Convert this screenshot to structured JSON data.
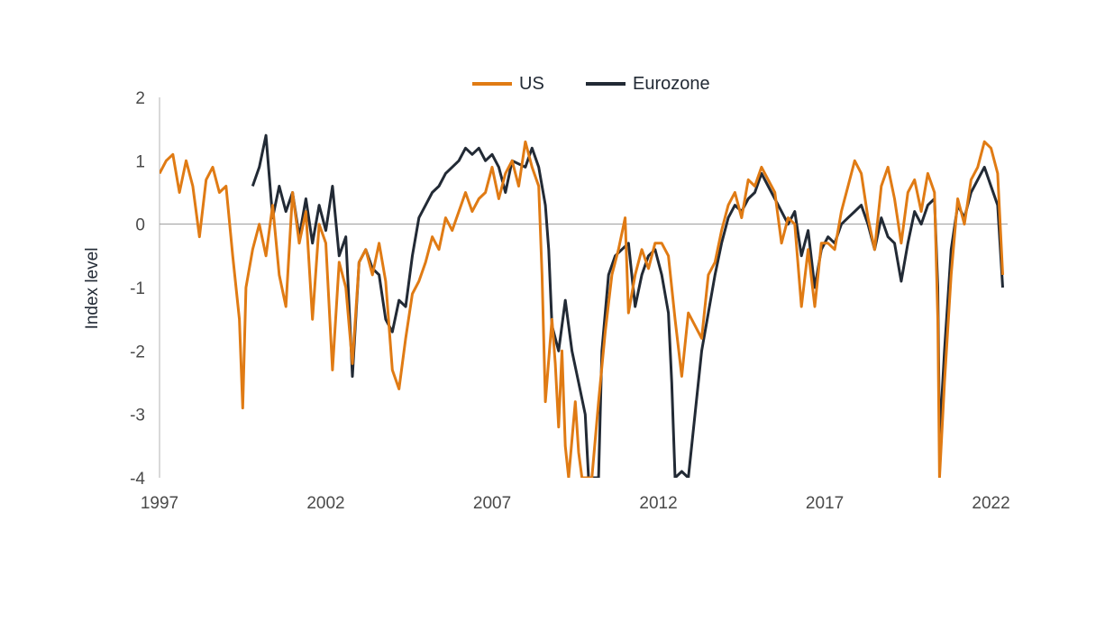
{
  "colors": {
    "us": "#e07b14",
    "eurozone": "#222a35",
    "axis": "#9a9a9a"
  },
  "legend": {
    "us_label": "US",
    "eurozone_label": "Eurozone"
  },
  "chart_data": {
    "type": "line",
    "title": "",
    "xlabel": "",
    "ylabel": "Index level",
    "xlim": [
      1997,
      2022.5
    ],
    "ylim": [
      -4,
      2
    ],
    "x_ticks": [
      1997,
      2002,
      2007,
      2012,
      2017,
      2022
    ],
    "y_ticks": [
      2,
      1,
      0,
      -1,
      -2,
      -3,
      -4
    ],
    "legend_position": "top-center",
    "grid": false,
    "series": [
      {
        "name": "US",
        "color": "#e07b14",
        "points": [
          [
            1997.0,
            0.8
          ],
          [
            1997.2,
            1.0
          ],
          [
            1997.4,
            1.1
          ],
          [
            1997.6,
            0.5
          ],
          [
            1997.8,
            1.0
          ],
          [
            1998.0,
            0.6
          ],
          [
            1998.2,
            -0.2
          ],
          [
            1998.4,
            0.7
          ],
          [
            1998.6,
            0.9
          ],
          [
            1998.8,
            0.5
          ],
          [
            1999.0,
            0.6
          ],
          [
            1999.2,
            -0.5
          ],
          [
            1999.4,
            -1.5
          ],
          [
            1999.5,
            -2.9
          ],
          [
            1999.6,
            -1.0
          ],
          [
            1999.8,
            -0.4
          ],
          [
            2000.0,
            0.0
          ],
          [
            2000.2,
            -0.5
          ],
          [
            2000.4,
            0.3
          ],
          [
            2000.6,
            -0.8
          ],
          [
            2000.8,
            -1.3
          ],
          [
            2001.0,
            0.5
          ],
          [
            2001.2,
            -0.3
          ],
          [
            2001.4,
            0.2
          ],
          [
            2001.6,
            -1.5
          ],
          [
            2001.8,
            0.0
          ],
          [
            2002.0,
            -0.3
          ],
          [
            2002.2,
            -2.3
          ],
          [
            2002.4,
            -0.6
          ],
          [
            2002.6,
            -1.0
          ],
          [
            2002.8,
            -2.2
          ],
          [
            2003.0,
            -0.6
          ],
          [
            2003.2,
            -0.4
          ],
          [
            2003.4,
            -0.8
          ],
          [
            2003.6,
            -0.3
          ],
          [
            2003.8,
            -0.9
          ],
          [
            2004.0,
            -2.3
          ],
          [
            2004.2,
            -2.6
          ],
          [
            2004.4,
            -1.8
          ],
          [
            2004.6,
            -1.1
          ],
          [
            2004.8,
            -0.9
          ],
          [
            2005.0,
            -0.6
          ],
          [
            2005.2,
            -0.2
          ],
          [
            2005.4,
            -0.4
          ],
          [
            2005.6,
            0.1
          ],
          [
            2005.8,
            -0.1
          ],
          [
            2006.0,
            0.2
          ],
          [
            2006.2,
            0.5
          ],
          [
            2006.4,
            0.2
          ],
          [
            2006.6,
            0.4
          ],
          [
            2006.8,
            0.5
          ],
          [
            2007.0,
            0.9
          ],
          [
            2007.2,
            0.4
          ],
          [
            2007.4,
            0.8
          ],
          [
            2007.6,
            1.0
          ],
          [
            2007.8,
            0.6
          ],
          [
            2008.0,
            1.3
          ],
          [
            2008.2,
            0.9
          ],
          [
            2008.4,
            0.6
          ],
          [
            2008.5,
            -0.8
          ],
          [
            2008.6,
            -2.8
          ],
          [
            2008.8,
            -1.5
          ],
          [
            2008.9,
            -2.2
          ],
          [
            2009.0,
            -3.2
          ],
          [
            2009.1,
            -2.0
          ],
          [
            2009.2,
            -3.5
          ],
          [
            2009.3,
            -4.0
          ],
          [
            2009.5,
            -2.8
          ],
          [
            2009.6,
            -3.6
          ],
          [
            2009.7,
            -4.0
          ],
          [
            2009.9,
            -4.0
          ],
          [
            2010.0,
            -4.0
          ],
          [
            2010.2,
            -2.8
          ],
          [
            2010.4,
            -1.7
          ],
          [
            2010.6,
            -0.8
          ],
          [
            2010.8,
            -0.4
          ],
          [
            2011.0,
            0.1
          ],
          [
            2011.1,
            -1.4
          ],
          [
            2011.3,
            -0.8
          ],
          [
            2011.5,
            -0.4
          ],
          [
            2011.7,
            -0.7
          ],
          [
            2011.9,
            -0.3
          ],
          [
            2012.1,
            -0.3
          ],
          [
            2012.3,
            -0.5
          ],
          [
            2012.5,
            -1.5
          ],
          [
            2012.7,
            -2.4
          ],
          [
            2012.9,
            -1.4
          ],
          [
            2013.1,
            -1.6
          ],
          [
            2013.3,
            -1.8
          ],
          [
            2013.5,
            -0.8
          ],
          [
            2013.7,
            -0.6
          ],
          [
            2013.9,
            -0.1
          ],
          [
            2014.1,
            0.3
          ],
          [
            2014.3,
            0.5
          ],
          [
            2014.5,
            0.1
          ],
          [
            2014.7,
            0.7
          ],
          [
            2014.9,
            0.6
          ],
          [
            2015.1,
            0.9
          ],
          [
            2015.3,
            0.7
          ],
          [
            2015.5,
            0.5
          ],
          [
            2015.7,
            -0.3
          ],
          [
            2015.9,
            0.1
          ],
          [
            2016.1,
            0.0
          ],
          [
            2016.3,
            -1.3
          ],
          [
            2016.5,
            -0.4
          ],
          [
            2016.7,
            -1.3
          ],
          [
            2016.9,
            -0.3
          ],
          [
            2017.1,
            -0.3
          ],
          [
            2017.3,
            -0.4
          ],
          [
            2017.5,
            0.2
          ],
          [
            2017.7,
            0.6
          ],
          [
            2017.9,
            1.0
          ],
          [
            2018.1,
            0.8
          ],
          [
            2018.3,
            0.1
          ],
          [
            2018.5,
            -0.4
          ],
          [
            2018.7,
            0.6
          ],
          [
            2018.9,
            0.9
          ],
          [
            2019.1,
            0.4
          ],
          [
            2019.3,
            -0.3
          ],
          [
            2019.5,
            0.5
          ],
          [
            2019.7,
            0.7
          ],
          [
            2019.9,
            0.2
          ],
          [
            2020.1,
            0.8
          ],
          [
            2020.3,
            0.5
          ],
          [
            2020.4,
            -1.5
          ],
          [
            2020.45,
            -4.0
          ],
          [
            2020.6,
            -2.5
          ],
          [
            2020.8,
            -0.8
          ],
          [
            2021.0,
            0.4
          ],
          [
            2021.2,
            0.0
          ],
          [
            2021.4,
            0.7
          ],
          [
            2021.6,
            0.9
          ],
          [
            2021.8,
            1.3
          ],
          [
            2022.0,
            1.2
          ],
          [
            2022.2,
            0.8
          ],
          [
            2022.35,
            -0.8
          ]
        ]
      },
      {
        "name": "Eurozone",
        "color": "#222a35",
        "points": [
          [
            1999.8,
            0.6
          ],
          [
            2000.0,
            0.9
          ],
          [
            2000.2,
            1.4
          ],
          [
            2000.4,
            0.1
          ],
          [
            2000.6,
            0.6
          ],
          [
            2000.8,
            0.2
          ],
          [
            2001.0,
            0.5
          ],
          [
            2001.2,
            -0.2
          ],
          [
            2001.4,
            0.4
          ],
          [
            2001.6,
            -0.3
          ],
          [
            2001.8,
            0.3
          ],
          [
            2002.0,
            -0.1
          ],
          [
            2002.2,
            0.6
          ],
          [
            2002.4,
            -0.5
          ],
          [
            2002.6,
            -0.2
          ],
          [
            2002.8,
            -2.4
          ],
          [
            2003.0,
            -0.6
          ],
          [
            2003.2,
            -0.4
          ],
          [
            2003.4,
            -0.7
          ],
          [
            2003.6,
            -0.8
          ],
          [
            2003.8,
            -1.5
          ],
          [
            2004.0,
            -1.7
          ],
          [
            2004.2,
            -1.2
          ],
          [
            2004.4,
            -1.3
          ],
          [
            2004.6,
            -0.5
          ],
          [
            2004.8,
            0.1
          ],
          [
            2005.0,
            0.3
          ],
          [
            2005.2,
            0.5
          ],
          [
            2005.4,
            0.6
          ],
          [
            2005.6,
            0.8
          ],
          [
            2005.8,
            0.9
          ],
          [
            2006.0,
            1.0
          ],
          [
            2006.2,
            1.2
          ],
          [
            2006.4,
            1.1
          ],
          [
            2006.6,
            1.2
          ],
          [
            2006.8,
            1.0
          ],
          [
            2007.0,
            1.1
          ],
          [
            2007.2,
            0.9
          ],
          [
            2007.4,
            0.5
          ],
          [
            2007.6,
            1.0
          ],
          [
            2008.0,
            0.9
          ],
          [
            2008.2,
            1.2
          ],
          [
            2008.4,
            0.9
          ],
          [
            2008.6,
            0.3
          ],
          [
            2008.7,
            -0.4
          ],
          [
            2008.8,
            -1.6
          ],
          [
            2009.0,
            -2.0
          ],
          [
            2009.2,
            -1.2
          ],
          [
            2009.4,
            -2.0
          ],
          [
            2009.6,
            -2.5
          ],
          [
            2009.8,
            -3.0
          ],
          [
            2009.9,
            -4.0
          ],
          [
            2010.2,
            -4.0
          ],
          [
            2010.3,
            -2.0
          ],
          [
            2010.5,
            -0.8
          ],
          [
            2010.7,
            -0.5
          ],
          [
            2010.9,
            -0.4
          ],
          [
            2011.1,
            -0.3
          ],
          [
            2011.3,
            -1.3
          ],
          [
            2011.5,
            -0.8
          ],
          [
            2011.7,
            -0.5
          ],
          [
            2011.9,
            -0.4
          ],
          [
            2012.1,
            -0.8
          ],
          [
            2012.3,
            -1.4
          ],
          [
            2012.4,
            -2.5
          ],
          [
            2012.5,
            -4.0
          ],
          [
            2012.7,
            -3.9
          ],
          [
            2012.9,
            -4.0
          ],
          [
            2013.1,
            -3.0
          ],
          [
            2013.3,
            -2.0
          ],
          [
            2013.5,
            -1.4
          ],
          [
            2013.7,
            -0.8
          ],
          [
            2013.9,
            -0.3
          ],
          [
            2014.1,
            0.1
          ],
          [
            2014.3,
            0.3
          ],
          [
            2014.5,
            0.2
          ],
          [
            2014.7,
            0.4
          ],
          [
            2014.9,
            0.5
          ],
          [
            2015.1,
            0.8
          ],
          [
            2015.3,
            0.6
          ],
          [
            2015.5,
            0.4
          ],
          [
            2015.7,
            0.2
          ],
          [
            2015.9,
            0.0
          ],
          [
            2016.1,
            0.2
          ],
          [
            2016.3,
            -0.5
          ],
          [
            2016.5,
            -0.1
          ],
          [
            2016.7,
            -1.0
          ],
          [
            2016.9,
            -0.4
          ],
          [
            2017.1,
            -0.2
          ],
          [
            2017.3,
            -0.3
          ],
          [
            2017.5,
            0.0
          ],
          [
            2017.7,
            0.1
          ],
          [
            2017.9,
            0.2
          ],
          [
            2018.1,
            0.3
          ],
          [
            2018.3,
            0.0
          ],
          [
            2018.5,
            -0.4
          ],
          [
            2018.7,
            0.1
          ],
          [
            2018.9,
            -0.2
          ],
          [
            2019.1,
            -0.3
          ],
          [
            2019.3,
            -0.9
          ],
          [
            2019.5,
            -0.3
          ],
          [
            2019.7,
            0.2
          ],
          [
            2019.9,
            0.0
          ],
          [
            2020.1,
            0.3
          ],
          [
            2020.3,
            0.4
          ],
          [
            2020.4,
            -1.0
          ],
          [
            2020.45,
            -3.4
          ],
          [
            2020.6,
            -2.0
          ],
          [
            2020.8,
            -0.4
          ],
          [
            2021.0,
            0.3
          ],
          [
            2021.2,
            0.1
          ],
          [
            2021.4,
            0.5
          ],
          [
            2021.6,
            0.7
          ],
          [
            2021.8,
            0.9
          ],
          [
            2022.0,
            0.6
          ],
          [
            2022.2,
            0.3
          ],
          [
            2022.35,
            -1.0
          ]
        ]
      }
    ]
  }
}
